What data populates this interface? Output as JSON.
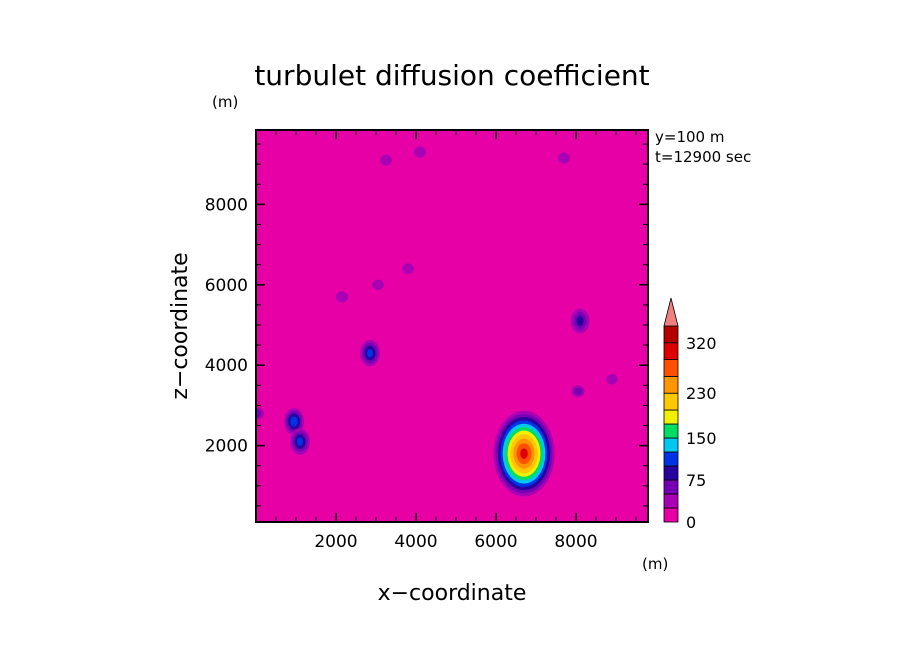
{
  "chart_data": {
    "type": "contour",
    "title": "turbulet diffusion coefficient",
    "xlabel": "x−coordinate",
    "ylabel": "z−coordinate",
    "x_unit": "(m)",
    "y_unit": "(m)",
    "xlim": [
      0,
      9800
    ],
    "ylim": [
      100,
      9850
    ],
    "xticks": [
      2000,
      4000,
      6000,
      8000
    ],
    "yticks": [
      2000,
      4000,
      6000,
      8000
    ],
    "xtick_labels": [
      "2000",
      "4000",
      "6000",
      "8000"
    ],
    "ytick_labels": [
      "2000",
      "4000",
      "6000",
      "8000"
    ],
    "annotations": [
      "y=100  m",
      "t=12900 sec"
    ],
    "colorbar": {
      "labels": [
        {
          "value": 0,
          "text": "0"
        },
        {
          "value": 75,
          "text": "75"
        },
        {
          "value": 150,
          "text": "150"
        },
        {
          "value": 230,
          "text": "230"
        },
        {
          "value": 320,
          "text": "320"
        }
      ],
      "levels": [
        0,
        25,
        50,
        75,
        100,
        125,
        150,
        175,
        200,
        230,
        260,
        290,
        320,
        350
      ],
      "colors": [
        "#e600a5",
        "#aa00b4",
        "#7800b4",
        "#2800a0",
        "#0032e6",
        "#00c8f0",
        "#00dc64",
        "#f0f000",
        "#ffc800",
        "#ff9600",
        "#ff5000",
        "#dc0000",
        "#b40000"
      ],
      "extend_color": "#f08080"
    },
    "features": [
      {
        "x": 6700,
        "z": 1800,
        "peak": 290,
        "note": "main plume"
      },
      {
        "x": 2850,
        "z": 4300,
        "peak": 100
      },
      {
        "x": 950,
        "z": 2600,
        "peak": 110
      },
      {
        "x": 1100,
        "z": 2100,
        "peak": 100
      },
      {
        "x": 8050,
        "z": 3350,
        "peak": 60
      },
      {
        "x": 4100,
        "z": 9300,
        "peak": 45
      },
      {
        "x": 3250,
        "z": 9100,
        "peak": 45
      },
      {
        "x": 7700,
        "z": 9150,
        "peak": 45
      },
      {
        "x": 3050,
        "z": 6000,
        "peak": 40
      },
      {
        "x": 2150,
        "z": 5700,
        "peak": 45
      },
      {
        "x": 3800,
        "z": 6400,
        "peak": 40
      },
      {
        "x": 8100,
        "z": 5100,
        "peak": 75
      },
      {
        "x": 8900,
        "z": 3650,
        "peak": 40
      },
      {
        "x": 30,
        "z": 2800,
        "peak": 60
      }
    ]
  }
}
